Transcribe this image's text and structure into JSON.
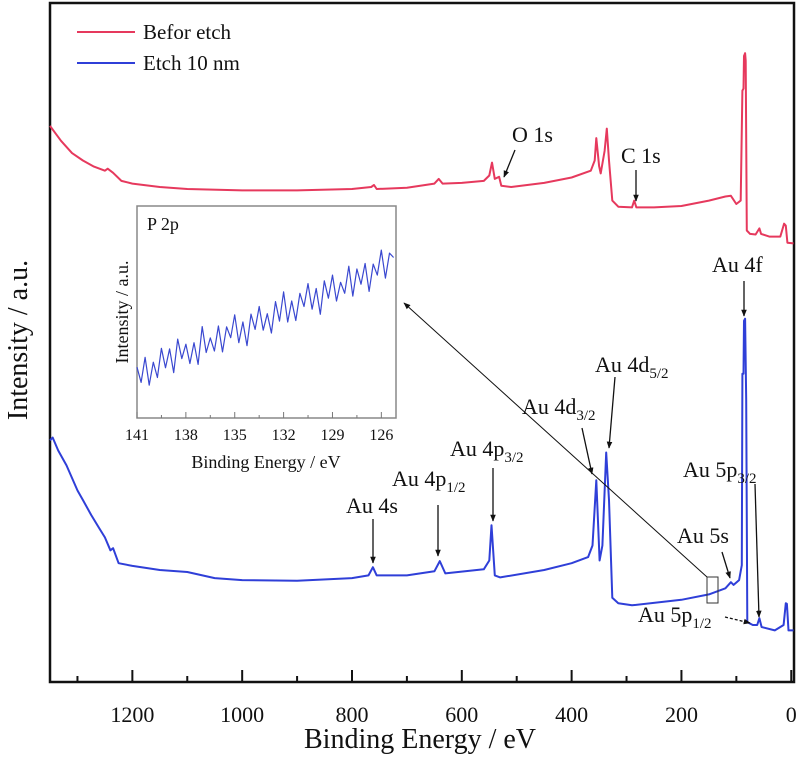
{
  "chart_data": [
    {
      "type": "line",
      "xlabel": "Binding Energy / eV",
      "ylabel": "Intensity / a.u.",
      "xlim": [
        1350,
        -5
      ],
      "ylim": [
        0,
        100
      ],
      "x_reversed": true,
      "xticks": [
        1200,
        1000,
        800,
        600,
        400,
        200,
        0
      ],
      "minor_xtick_step": 100,
      "yticks": [],
      "grid": false,
      "legend_position": "top-left",
      "series": [
        {
          "name": "Befor etch",
          "color": "#e6395d",
          "x": [
            1350,
            1330,
            1310,
            1290,
            1270,
            1250,
            1245,
            1235,
            1220,
            1200,
            1150,
            1100,
            1000,
            900,
            800,
            765,
            760,
            755,
            700,
            650,
            642,
            635,
            600,
            560,
            550,
            545,
            540,
            532,
            528,
            510,
            450,
            400,
            365,
            358,
            355,
            350,
            347,
            340,
            336,
            332,
            326,
            315,
            290,
            286,
            282,
            250,
            200,
            150,
            120,
            110,
            100,
            92,
            89,
            87,
            86,
            84,
            83,
            81,
            75,
            65,
            58,
            55,
            40,
            20,
            13,
            10,
            7,
            -4
          ],
          "y": [
            81.9,
            79.7,
            77.9,
            76.8,
            75.9,
            75.3,
            75.6,
            75.0,
            73.8,
            73.4,
            72.9,
            72.6,
            72.4,
            72.4,
            72.6,
            72.9,
            73.2,
            72.6,
            72.8,
            73.4,
            74.1,
            73.4,
            73.5,
            73.8,
            74.6,
            76.5,
            74.1,
            74.4,
            73.1,
            72.9,
            73.5,
            74.3,
            75.3,
            76.8,
            80.1,
            76.0,
            74.9,
            78.2,
            81.5,
            76.8,
            70.9,
            70.0,
            69.9,
            70.9,
            69.9,
            69.9,
            70.1,
            70.9,
            71.5,
            71.6,
            70.4,
            70.9,
            87.1,
            87.4,
            92.2,
            92.6,
            91.5,
            66.5,
            66.0,
            65.9,
            66.8,
            66.0,
            65.6,
            65.6,
            67.5,
            67.2,
            64.7,
            64.6
          ]
        },
        {
          "name": "Etch 10 nm",
          "color": "#2f3fd8",
          "x": [
            1350,
            1345,
            1335,
            1320,
            1300,
            1290,
            1275,
            1260,
            1250,
            1240,
            1235,
            1225,
            1200,
            1150,
            1100,
            1050,
            1000,
            900,
            800,
            770,
            762,
            755,
            700,
            650,
            640,
            630,
            560,
            550,
            546,
            540,
            530,
            450,
            400,
            370,
            362,
            355,
            349,
            344,
            337,
            332,
            326,
            315,
            290,
            200,
            150,
            120,
            110,
            105,
            95,
            90,
            89,
            87,
            86,
            84,
            82,
            80,
            70,
            62,
            58,
            54,
            30,
            14,
            10,
            8,
            5,
            -4
          ],
          "y": [
            35.6,
            36.0,
            34.1,
            31.9,
            28.2,
            26.8,
            24.6,
            22.6,
            21.3,
            19.4,
            19.7,
            17.5,
            17.1,
            16.5,
            16.2,
            15.3,
            15.0,
            14.9,
            15.3,
            15.7,
            16.9,
            15.7,
            15.7,
            16.3,
            17.8,
            16.0,
            16.6,
            17.9,
            23.1,
            15.7,
            15.4,
            16.5,
            17.5,
            18.4,
            20.1,
            29.7,
            17.9,
            20.1,
            33.8,
            26.8,
            12.4,
            11.6,
            11.3,
            12.1,
            12.9,
            13.8,
            14.7,
            14.3,
            15.0,
            17.2,
            45.4,
            45.4,
            53.2,
            53.5,
            41.5,
            8.8,
            8.4,
            8.4,
            9.4,
            8.1,
            7.6,
            8.4,
            11.6,
            11.5,
            7.6,
            7.6
          ]
        }
      ],
      "annotations": [
        {
          "label": "O 1s",
          "sub": ""
        },
        {
          "label": "C 1s",
          "sub": ""
        },
        {
          "label": "Au 4f",
          "sub": ""
        },
        {
          "label": "Au 4d",
          "sub": "5/2"
        },
        {
          "label": "Au 4d",
          "sub": "3/2"
        },
        {
          "label": "Au 4p",
          "sub": "3/2"
        },
        {
          "label": "Au 4p",
          "sub": "1/2"
        },
        {
          "label": "Au 4s",
          "sub": ""
        },
        {
          "label": "Au 5p",
          "sub": "3/2"
        },
        {
          "label": "Au 5s",
          "sub": ""
        },
        {
          "label": "Au 5p",
          "sub": "1/2"
        }
      ]
    },
    {
      "type": "line",
      "title": "P 2p",
      "xlabel": "Binding Energy / eV",
      "ylabel": "Intensity / a.u.",
      "xlim": [
        141,
        125.1
      ],
      "ylim": [
        0,
        100
      ],
      "x_reversed": true,
      "xticks": [
        141,
        138,
        135,
        132,
        129,
        126
      ],
      "grid": false,
      "series": [
        {
          "color": "#3a48d0",
          "x": [
            141,
            140.75,
            140.5,
            140.25,
            140,
            139.75,
            139.5,
            139.25,
            139,
            138.75,
            138.5,
            138.25,
            138,
            137.75,
            137.5,
            137.25,
            137,
            136.75,
            136.5,
            136.25,
            136,
            135.75,
            135.5,
            135.25,
            135,
            134.75,
            134.5,
            134.25,
            134,
            133.75,
            133.5,
            133.25,
            133,
            132.75,
            132.5,
            132.25,
            132,
            131.75,
            131.5,
            131.25,
            131,
            130.75,
            130.5,
            130.25,
            130,
            129.75,
            129.5,
            129.25,
            129,
            128.75,
            128.5,
            128.25,
            128,
            127.75,
            127.5,
            127.25,
            127,
            126.75,
            126.5,
            126.25,
            126,
            125.75,
            125.5,
            125.25
          ],
          "y": [
            24,
            16.8,
            28.6,
            15.5,
            26.3,
            19.1,
            32.9,
            23.7,
            32.6,
            21.4,
            37.2,
            28.0,
            34.8,
            25.7,
            35.5,
            25.3,
            43.1,
            30.9,
            37.8,
            31.6,
            43.4,
            31.2,
            43.0,
            37.9,
            48.7,
            35.5,
            45.3,
            34.1,
            49.0,
            41.8,
            52.6,
            41.4,
            49.2,
            40.1,
            54.9,
            45.7,
            59.5,
            45.3,
            55.2,
            46.0,
            58.8,
            52.6,
            63.4,
            51.3,
            61.1,
            48.9,
            64.7,
            56.5,
            67.4,
            55.2,
            64.0,
            58.8,
            71.6,
            57.5,
            70.3,
            63.1,
            72.9,
            59.7,
            72.6,
            67.4,
            79.2,
            66.0,
            77.8,
            75.7
          ]
        }
      ]
    }
  ]
}
